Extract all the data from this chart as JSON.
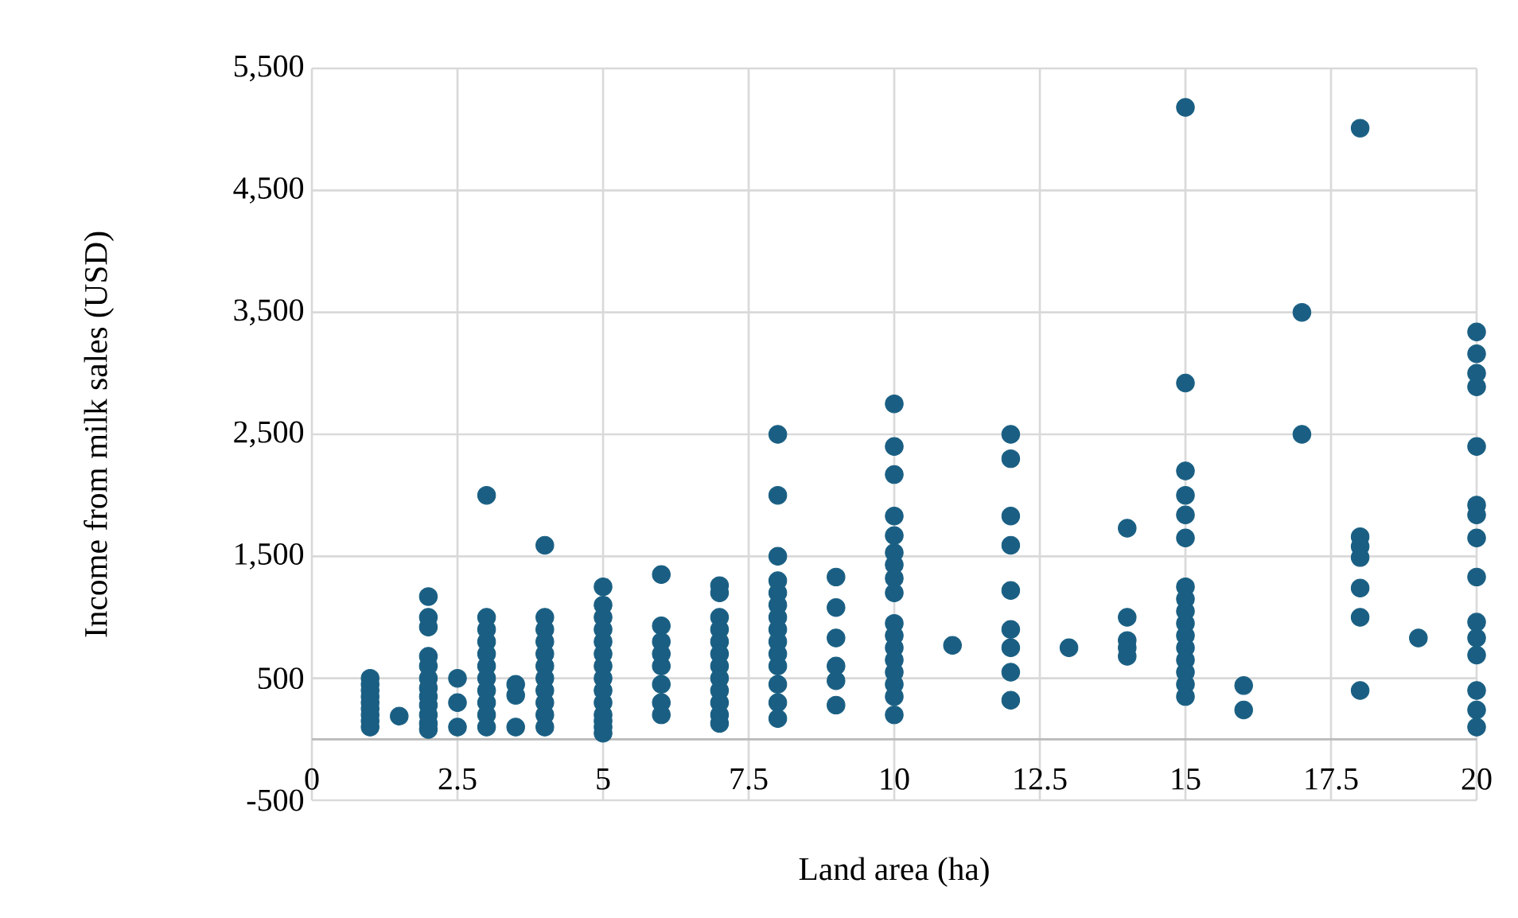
{
  "chart_data": {
    "type": "scatter",
    "xlabel": "Land area (ha)",
    "ylabel": "Income from milk sales (USD)",
    "x": [
      1,
      1,
      1,
      1,
      1,
      1,
      1,
      1,
      1,
      1.5,
      2,
      2,
      2,
      2,
      2,
      2,
      2,
      2,
      2,
      2,
      2,
      2,
      2.5,
      2.5,
      2.5,
      3,
      3,
      3,
      3,
      3,
      3,
      3,
      3,
      3,
      3,
      3,
      3.5,
      3.5,
      3.5,
      4,
      4,
      4,
      4,
      4,
      4,
      4,
      4,
      4,
      4,
      4,
      5,
      5,
      5,
      5,
      5,
      5,
      5,
      5,
      5,
      5,
      5,
      5,
      5,
      5,
      6,
      6,
      6,
      6,
      6,
      6,
      6,
      6,
      7,
      7,
      7,
      7,
      7,
      7,
      7,
      7,
      7,
      7,
      7,
      7,
      8,
      8,
      8,
      8,
      8,
      8,
      8,
      8,
      8,
      8,
      8,
      8,
      8,
      8,
      9,
      9,
      9,
      9,
      9,
      9,
      10,
      10,
      10,
      10,
      10,
      10,
      10,
      10,
      10,
      10,
      10,
      10,
      10,
      10,
      10,
      10,
      10,
      11,
      12,
      12,
      12,
      12,
      12,
      12,
      12,
      12,
      12,
      13,
      14,
      14,
      14,
      14,
      14,
      15,
      15,
      15,
      15,
      15,
      15,
      15,
      15,
      15,
      15,
      15,
      15,
      15,
      15,
      15,
      15,
      16,
      16,
      17,
      17,
      18,
      18,
      18,
      18,
      18,
      18,
      18,
      19,
      20,
      20,
      20,
      20,
      20,
      20,
      20,
      20,
      20,
      20,
      20,
      20,
      20,
      20,
      20
    ],
    "values": [
      500,
      450,
      400,
      350,
      300,
      250,
      200,
      150,
      100,
      190,
      1170,
      1000,
      920,
      680,
      600,
      500,
      420,
      350,
      280,
      200,
      130,
      80,
      500,
      300,
      100,
      2000,
      1000,
      900,
      800,
      700,
      600,
      500,
      400,
      300,
      200,
      100,
      450,
      360,
      100,
      1590,
      1000,
      900,
      800,
      700,
      600,
      500,
      400,
      300,
      200,
      100,
      1250,
      1100,
      1000,
      900,
      800,
      700,
      600,
      500,
      400,
      300,
      200,
      150,
      100,
      50,
      1350,
      930,
      800,
      700,
      600,
      450,
      300,
      200,
      1260,
      1200,
      1000,
      900,
      800,
      700,
      600,
      500,
      400,
      300,
      200,
      130,
      2500,
      2000,
      1500,
      1300,
      1200,
      1100,
      1000,
      900,
      800,
      700,
      600,
      450,
      300,
      170,
      1330,
      1080,
      830,
      600,
      480,
      280,
      2750,
      2400,
      2170,
      1830,
      1670,
      1530,
      1430,
      1320,
      1200,
      950,
      850,
      750,
      650,
      550,
      450,
      350,
      200,
      770,
      2500,
      2300,
      1830,
      1590,
      1220,
      900,
      750,
      550,
      320,
      750,
      1730,
      1000,
      810,
      750,
      680,
      5180,
      2920,
      2200,
      2000,
      1840,
      1650,
      1250,
      1150,
      1050,
      950,
      850,
      750,
      650,
      550,
      450,
      350,
      440,
      240,
      3500,
      2500,
      5010,
      1660,
      1580,
      1490,
      1240,
      1000,
      400,
      830,
      3340,
      3160,
      3000,
      2890,
      2400,
      1920,
      1840,
      1650,
      1330,
      960,
      830,
      690,
      400,
      240,
      100
    ],
    "color": "#1a5f83",
    "marker": "circle",
    "grid": true,
    "xlim": [
      0,
      20
    ],
    "xticks": [
      0,
      2.5,
      5,
      7.5,
      10,
      12.5,
      15,
      17.5,
      20
    ],
    "ylim": [
      -500,
      5500
    ],
    "yticks": [
      {
        "value": -500,
        "label": "-500"
      },
      {
        "value": 500,
        "label": "500"
      },
      {
        "value": 1500,
        "label": "1,500"
      },
      {
        "value": 2500,
        "label": "2,500"
      },
      {
        "value": 3500,
        "label": "3,500"
      },
      {
        "value": 4500,
        "label": "4,500"
      },
      {
        "value": 5500,
        "label": "5,500"
      }
    ]
  }
}
